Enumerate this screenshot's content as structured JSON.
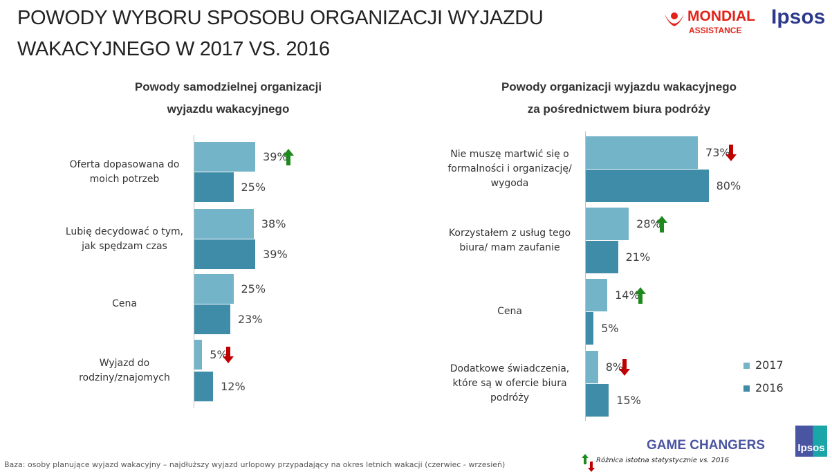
{
  "title_line1": "POWODY WYBORU SPOSOBU ORGANIZACJI WYJAZDU",
  "title_line2": "WAKACYJNEGO W 2017 VS. 2016",
  "logos": {
    "mondial_main": "MONDIAL",
    "mondial_sub": "ASSISTANCE",
    "ipsos": "Ipsos",
    "game_changers": "GAME CHANGERS",
    "ipsos_badge": "Ipsos"
  },
  "colors": {
    "s2017": "#74b4c9",
    "s2016": "#3f8ca8",
    "up": "#1e8a1e",
    "down": "#c00000",
    "brand_red": "#e2231a",
    "ipsos_blue": "#2d3a8c"
  },
  "legend": {
    "s2017": "2017",
    "s2016": "2016"
  },
  "note": "Różnica istotna statystycznie vs. 2016",
  "footer": "Baza: osoby planujące wyjazd wakacyjny – najdłuższy wyjazd urlopowy przypadający na okres letnich wakacji (czerwiec - wrzesień)",
  "chart_data": [
    {
      "type": "bar",
      "orientation": "horizontal",
      "title_line1": "Powody samodzielnej  organizacji",
      "title_line2": "wyjazdu wakacyjnego",
      "categories": [
        "Oferta dopasowana do moich potrzeb",
        "Lubię decydować o tym, jak spędzam czas",
        "Cena",
        "Wyjazd do rodziny/znajomych"
      ],
      "category_lines": [
        [
          "Oferta dopasowana do",
          "moich potrzeb"
        ],
        [
          "Lubię decydować o tym,",
          "jak spędzam czas"
        ],
        [
          "Cena"
        ],
        [
          "Wyjazd do",
          "rodziny/znajomych"
        ]
      ],
      "series": [
        {
          "name": "2017",
          "values": [
            39,
            38,
            25,
            5
          ],
          "labels": [
            "39%",
            "38%",
            "25%",
            "5%"
          ],
          "significance": [
            "up",
            null,
            null,
            "down"
          ]
        },
        {
          "name": "2016",
          "values": [
            25,
            39,
            23,
            12
          ],
          "labels": [
            "25%",
            "39%",
            "23%",
            "12%"
          ]
        }
      ]
    },
    {
      "type": "bar",
      "orientation": "horizontal",
      "title_line1": "Powody organizacji wyjazdu wakacyjnego",
      "title_line2": "za pośrednictwem biura podróży",
      "categories": [
        "Nie muszę martwić się o formalności i organizację/ wygoda",
        "Korzystałem z usług tego biura/ mam zaufanie",
        "Cena",
        "Dodatkowe świadczenia, które są w ofercie biura podróży"
      ],
      "category_lines": [
        [
          "Nie muszę martwić się o",
          "formalności i organizację/",
          "wygoda"
        ],
        [
          "Korzystałem z usług tego",
          "biura/ mam zaufanie"
        ],
        [
          "Cena"
        ],
        [
          "Dodatkowe świadczenia,",
          "które są w ofercie biura",
          "podróży"
        ]
      ],
      "series": [
        {
          "name": "2017",
          "values": [
            73,
            28,
            14,
            8
          ],
          "labels": [
            "73%",
            "28%",
            "14%",
            "8%"
          ],
          "significance": [
            "down",
            "up",
            "up",
            "down"
          ]
        },
        {
          "name": "2016",
          "values": [
            80,
            21,
            5,
            15
          ],
          "labels": [
            "80%",
            "21%",
            "5%",
            "15%"
          ]
        }
      ]
    }
  ]
}
